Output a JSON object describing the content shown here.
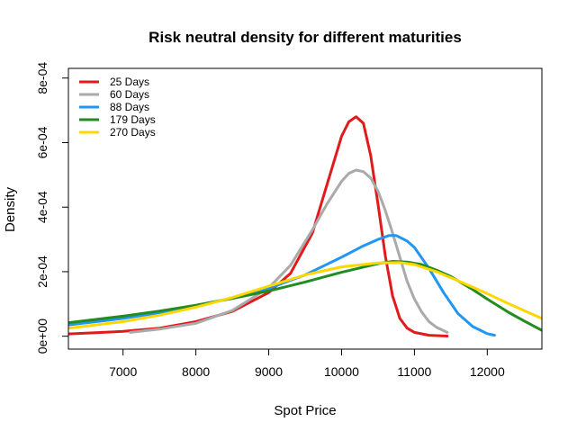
{
  "chart_data": {
    "type": "line",
    "title": "Risk neutral density for different maturities",
    "xlabel": "Spot Price",
    "ylabel": "Density",
    "xlim": [
      6250,
      12750
    ],
    "ylim": [
      -4e-05,
      0.00083
    ],
    "x_ticks": [
      7000,
      8000,
      9000,
      10000,
      11000,
      12000
    ],
    "x_tick_labels": [
      "7000",
      "8000",
      "9000",
      "10000",
      "11000",
      "12000"
    ],
    "y_ticks": [
      0,
      0.0002,
      0.0004,
      0.0006,
      0.0008
    ],
    "y_tick_labels": [
      "0e+00",
      "2e-04",
      "4e-04",
      "6e-04",
      "8e-04"
    ],
    "grid": false,
    "legend_position": "top-left",
    "series": [
      {
        "name": "25 Days",
        "color": "#e31a1c",
        "x": [
          6250,
          7000,
          7500,
          8000,
          8500,
          9000,
          9300,
          9600,
          9800,
          10000,
          10100,
          10200,
          10300,
          10400,
          10500,
          10600,
          10700,
          10800,
          10900,
          11000,
          11200,
          11450
        ],
        "y": [
          7e-06,
          1.5e-05,
          2.5e-05,
          4.5e-05,
          7.7e-05,
          0.000135,
          0.000195,
          0.00032,
          0.00047,
          0.00062,
          0.000665,
          0.00068,
          0.00066,
          0.00056,
          0.00041,
          0.00025,
          0.000125,
          5.5e-05,
          2.5e-05,
          1.2e-05,
          3e-06,
          3e-07
        ]
      },
      {
        "name": "60 Days",
        "color": "#aaaaaa",
        "x": [
          7100,
          7500,
          8000,
          8500,
          9000,
          9300,
          9600,
          9800,
          10000,
          10100,
          10200,
          10300,
          10400,
          10500,
          10600,
          10700,
          10800,
          10900,
          11000,
          11100,
          11200,
          11300,
          11450
        ],
        "y": [
          1.2e-05,
          2.2e-05,
          4e-05,
          8e-05,
          0.00015,
          0.00022,
          0.00033,
          0.00041,
          0.00048,
          0.000505,
          0.000515,
          0.00051,
          0.00049,
          0.00045,
          0.00039,
          0.00032,
          0.000245,
          0.00017,
          0.000115,
          7.5e-05,
          4.5e-05,
          2.8e-05,
          1.2e-05
        ]
      },
      {
        "name": "88 Days",
        "color": "#2196f3",
        "x": [
          6250,
          7000,
          7500,
          8000,
          8500,
          9000,
          9500,
          10000,
          10300,
          10500,
          10650,
          10750,
          10900,
          11000,
          11200,
          11400,
          11600,
          11800,
          12000,
          12100
        ],
        "y": [
          3.5e-05,
          5.5e-05,
          7.3e-05,
          9.5e-05,
          0.000118,
          0.000148,
          0.00019,
          0.000245,
          0.00028,
          0.0003,
          0.000312,
          0.000312,
          0.000295,
          0.000275,
          0.00021,
          0.000135,
          7e-05,
          3e-05,
          8e-06,
          3e-06
        ]
      },
      {
        "name": "179 Days",
        "color": "#228b22",
        "x": [
          6250,
          7000,
          7500,
          8000,
          8500,
          9000,
          9500,
          10000,
          10500,
          10700,
          10900,
          11100,
          11300,
          11500,
          11800,
          12000,
          12300,
          12500,
          12750
        ],
        "y": [
          4.2e-05,
          6.2e-05,
          7.8e-05,
          9.6e-05,
          0.000117,
          0.00014,
          0.000168,
          0.000198,
          0.000225,
          0.000232,
          0.00023,
          0.000222,
          0.000205,
          0.000185,
          0.000145,
          0.000115,
          7.3e-05,
          4.8e-05,
          1.8e-05
        ]
      },
      {
        "name": "270 Days",
        "color": "#ffd700",
        "x": [
          6250,
          7000,
          7500,
          8000,
          8500,
          9000,
          9500,
          10000,
          10500,
          10800,
          11000,
          11300,
          11600,
          12000,
          12300,
          12500,
          12750
        ],
        "y": [
          2.5e-05,
          4.5e-05,
          6.5e-05,
          9e-05,
          0.00012,
          0.000155,
          0.00019,
          0.000215,
          0.000227,
          0.000228,
          0.000222,
          0.0002,
          0.000172,
          0.000132,
          0.0001,
          8e-05,
          5.5e-05
        ]
      }
    ]
  }
}
